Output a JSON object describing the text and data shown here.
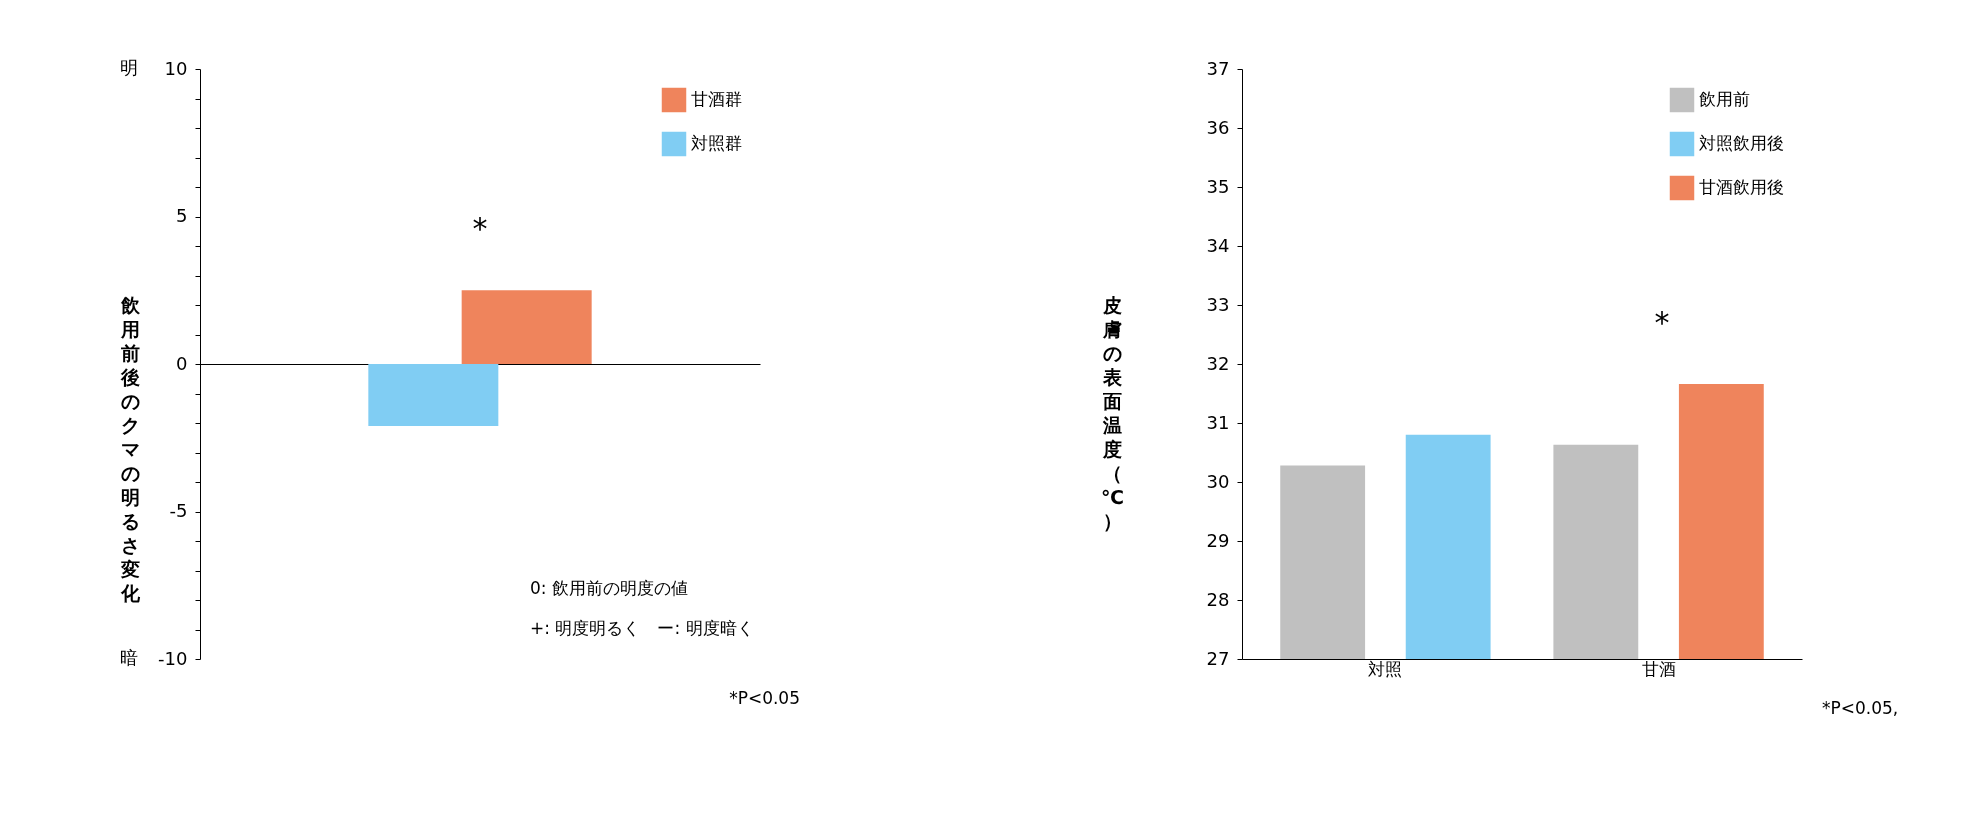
{
  "chart_data": [
    {
      "type": "bar",
      "categories": [
        null
      ],
      "ylabel": "飲用前後のクマの明るさ変化",
      "series": [
        {
          "name": "対照群",
          "color": "#80cdf3",
          "values": [
            -2.1
          ]
        },
        {
          "name": "甘酒群",
          "color": "#ef845c",
          "values": [
            2.5
          ]
        }
      ],
      "ylim": [
        -10,
        10
      ],
      "yticks": [
        -10,
        {
          "value": -9,
          "label": null
        },
        {
          "value": -8,
          "label": null
        },
        {
          "value": -7,
          "label": null
        },
        {
          "value": -6,
          "label": null
        },
        -5,
        {
          "value": -4,
          "label": null
        },
        {
          "value": -3,
          "label": null
        },
        {
          "value": -2,
          "label": null
        },
        {
          "value": -1,
          "label": null
        },
        0,
        {
          "value": 1,
          "label": null
        },
        {
          "value": 2,
          "label": null
        },
        {
          "value": 3,
          "label": null
        },
        {
          "value": 4,
          "label": null
        },
        5,
        {
          "value": 6,
          "label": null
        },
        {
          "value": 7,
          "label": null
        },
        {
          "value": 8,
          "label": null
        },
        {
          "value": 9,
          "label": null
        },
        10
      ],
      "annotations": [
        "明",
        "暗",
        "*",
        "0: 飲用前の明度の値",
        "+: 明度明るく　ー: 明度暗く",
        "*P<0.05"
      ],
      "legend": "top right"
    },
    {
      "type": "bar",
      "categories": [
        "対照",
        "甘酒"
      ],
      "ylabel": "皮膚の表面温度（℃）",
      "series": [
        {
          "name": "飲用前",
          "color": "#c0c0c0",
          "values": [
            30.28,
            30.63
          ]
        },
        {
          "name": "対照飲用後",
          "color": "#80cdf3",
          "values": [
            30.8,
            null
          ]
        },
        {
          "name": "甘酒飲用後",
          "color": "#ef845c",
          "values": [
            null,
            31.66
          ]
        }
      ],
      "ylim": [
        27,
        37
      ],
      "yticks": [
        27,
        28,
        29,
        30,
        31,
        32,
        33,
        34,
        35,
        36,
        37
      ],
      "annotations": [
        "*",
        "*P<0.05,"
      ],
      "legend": "top right"
    }
  ]
}
